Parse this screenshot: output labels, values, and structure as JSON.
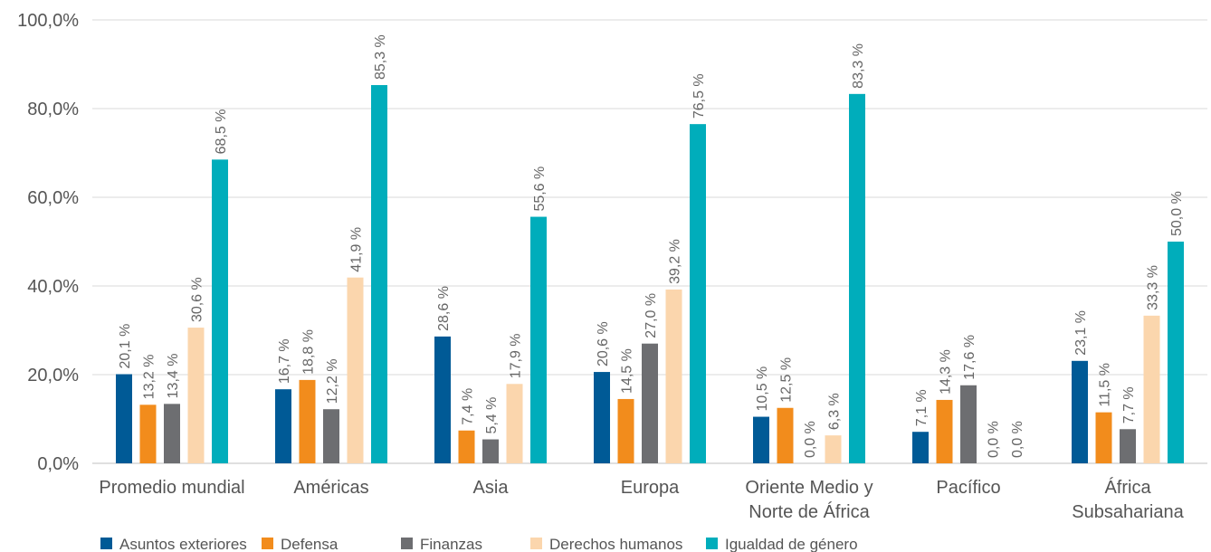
{
  "chart_data": {
    "type": "bar",
    "title": "",
    "xlabel": "",
    "ylabel": "",
    "ylim": [
      0,
      100
    ],
    "y_ticks": [
      "0,0%",
      "20,0%",
      "40,0%",
      "60,0%",
      "80,0%",
      "100,0%"
    ],
    "grid": true,
    "legend_position": "bottom-left",
    "categories": [
      [
        "Promedio mundial"
      ],
      [
        "Américas"
      ],
      [
        "Asia"
      ],
      [
        "Europa"
      ],
      [
        "Oriente Medio y",
        "Norte de África"
      ],
      [
        "Pacífico"
      ],
      [
        "África",
        "Subsahariana"
      ]
    ],
    "series": [
      {
        "name": "Asuntos exteriores",
        "color": "#005a96",
        "values": [
          20.1,
          16.7,
          28.6,
          20.6,
          10.5,
          7.1,
          23.1
        ],
        "labels": [
          "20,1 %",
          "16,7 %",
          "28,6 %",
          "20,6 %",
          "10,5 %",
          "7,1 %",
          "23,1 %"
        ]
      },
      {
        "name": "Defensa",
        "color": "#f28c1c",
        "values": [
          13.2,
          18.8,
          7.4,
          14.5,
          12.5,
          14.3,
          11.5
        ],
        "labels": [
          "13,2 %",
          "18,8 %",
          "7,4 %",
          "14,5 %",
          "12,5 %",
          "14,3 %",
          "11,5 %"
        ]
      },
      {
        "name": "Finanzas",
        "color": "#6d6e71",
        "values": [
          13.4,
          12.2,
          5.4,
          27.0,
          0.0,
          17.6,
          7.7
        ],
        "labels": [
          "13,4 %",
          "12,2 %",
          "5,4 %",
          "27,0 %",
          "0,0 %",
          "17,6 %",
          "7,7 %"
        ]
      },
      {
        "name": "Derechos humanos",
        "color": "#fbd6ad",
        "values": [
          30.6,
          41.9,
          17.9,
          39.2,
          6.3,
          0.0,
          33.3
        ],
        "labels": [
          "30,6 %",
          "41,9 %",
          "17,9 %",
          "39,2 %",
          "6,3 %",
          "0,0 %",
          "33,3 %"
        ]
      },
      {
        "name": "Igualdad de género",
        "color": "#00adbb",
        "values": [
          68.5,
          85.3,
          55.6,
          76.5,
          83.3,
          0.0,
          50.0
        ],
        "labels": [
          "68,5 %",
          "85,3 %",
          "55,6 %",
          "76,5 %",
          "83,3 %",
          "0,0 %",
          "50,0 %"
        ]
      }
    ]
  }
}
